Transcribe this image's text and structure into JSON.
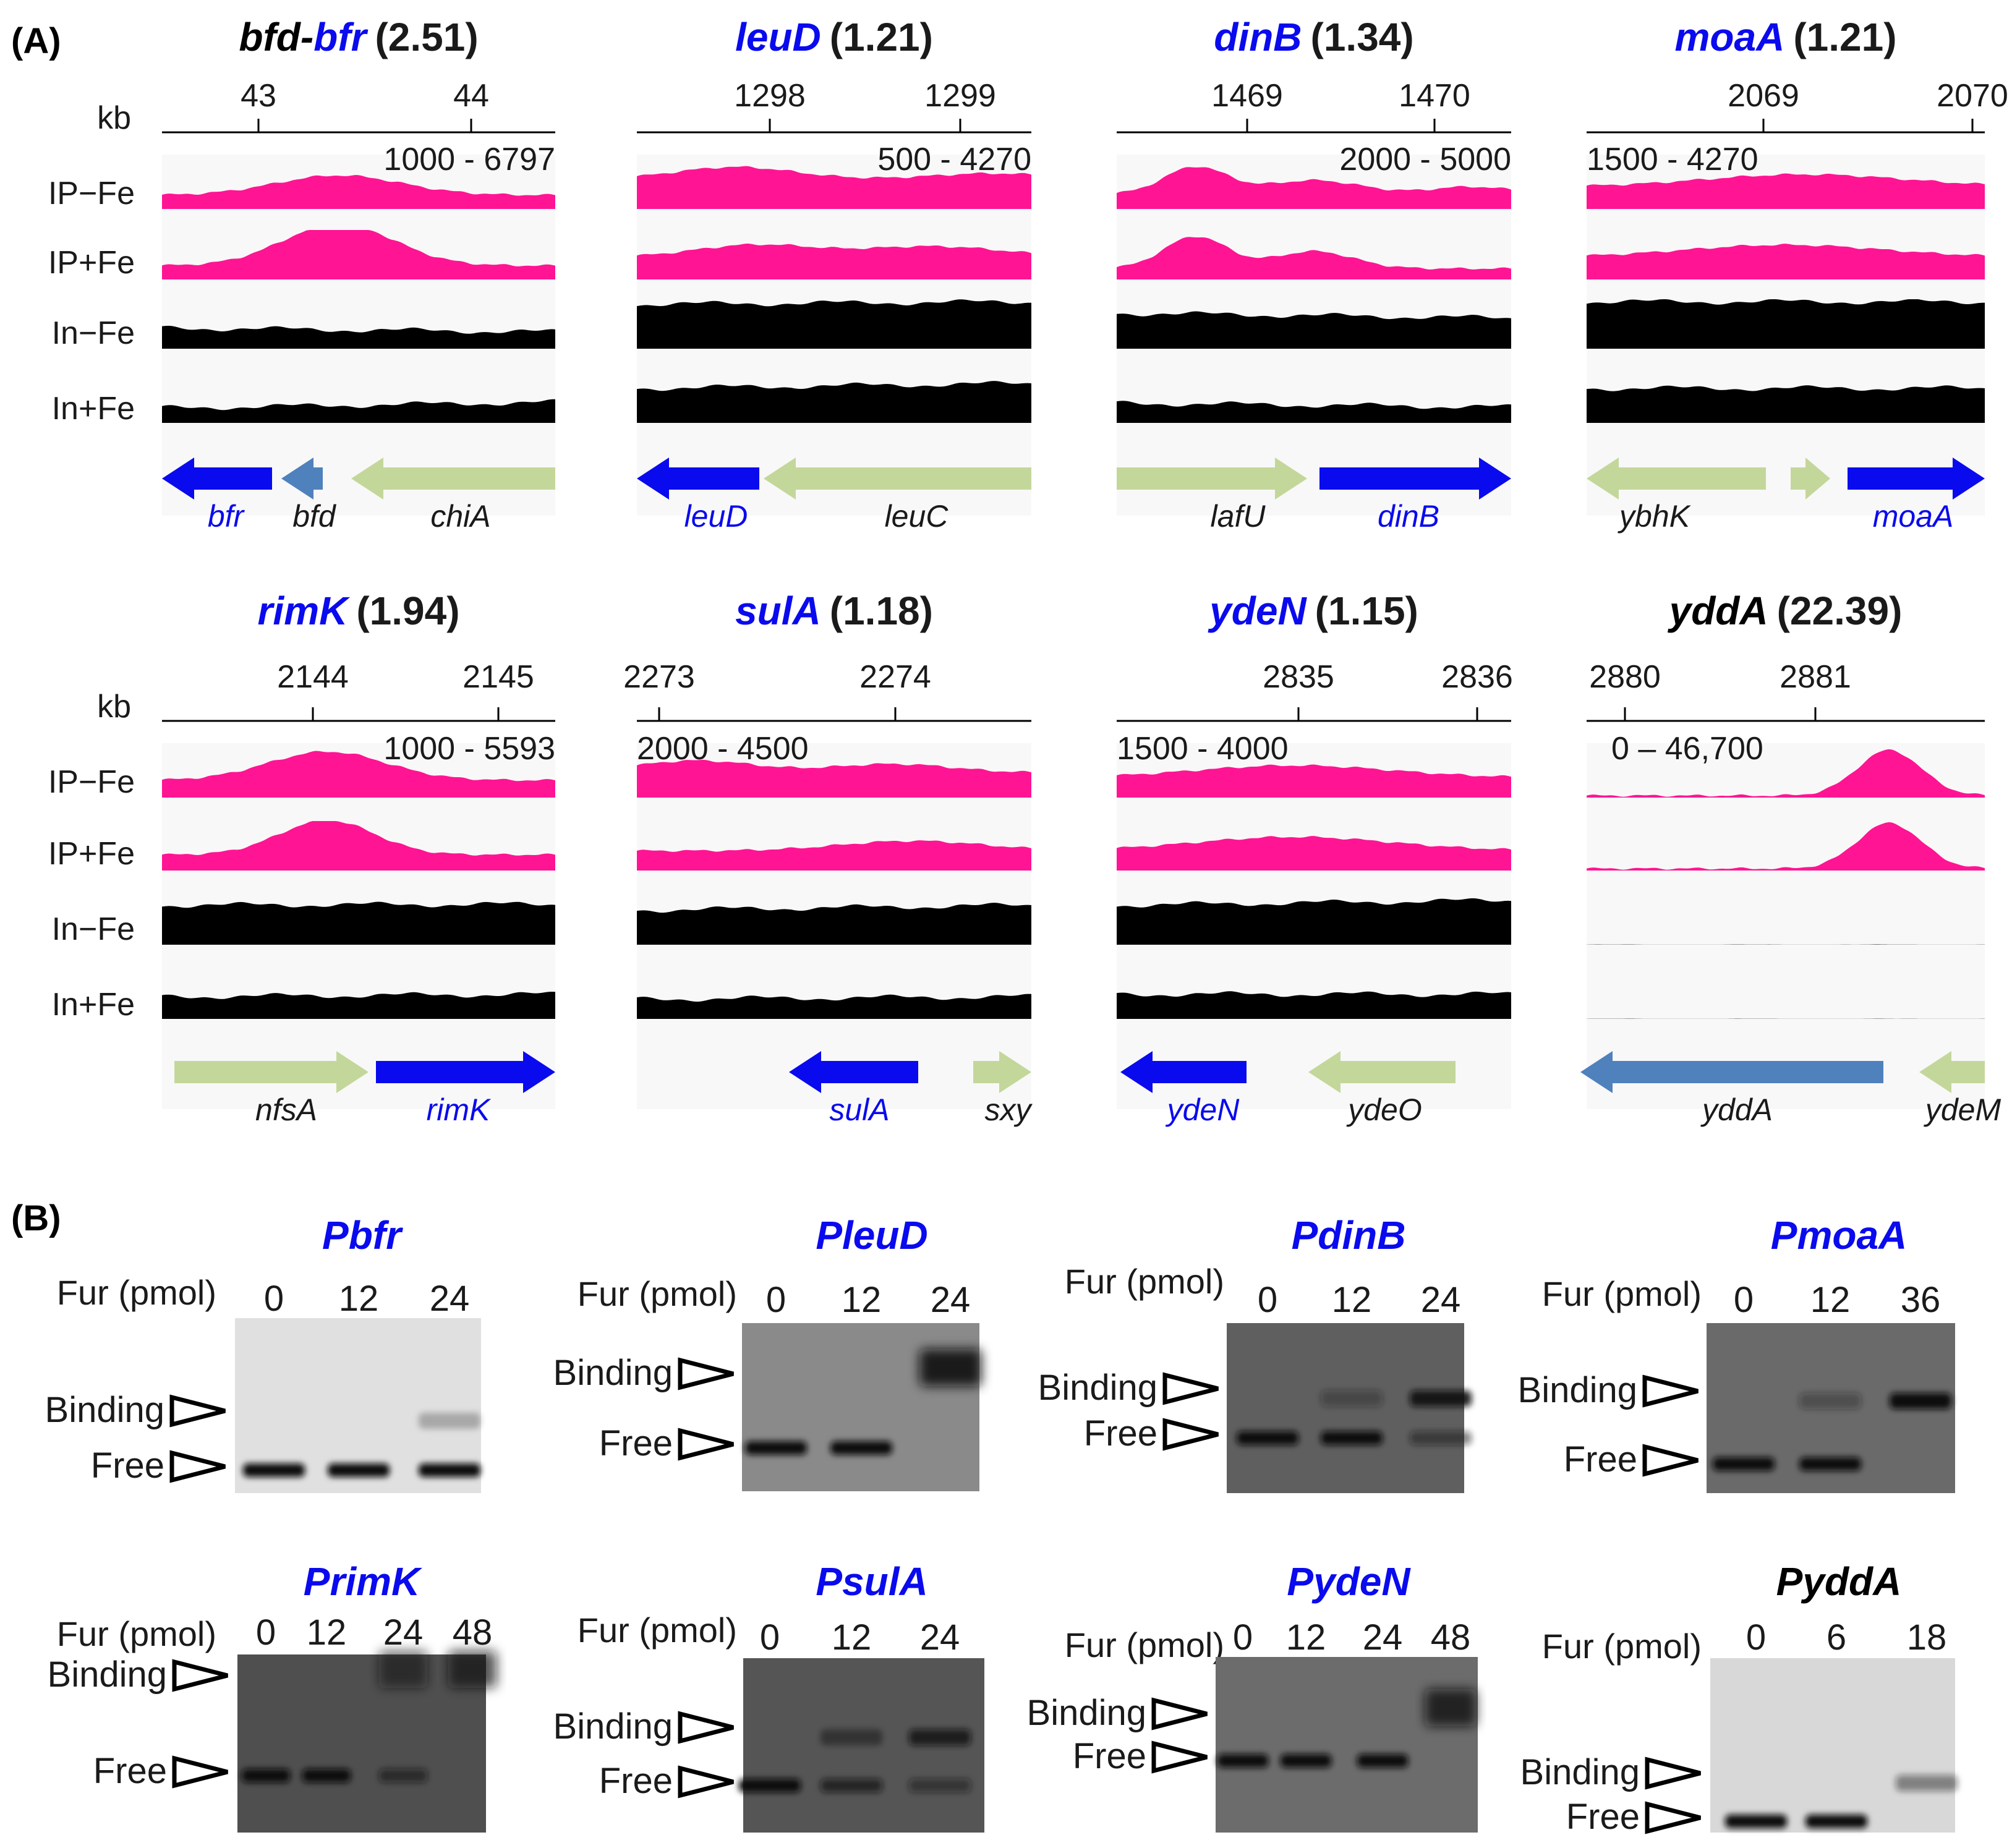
{
  "panel_labels": {
    "a": "(A)",
    "b": "(B)"
  },
  "colors": {
    "ip_track": "#ff1493",
    "input_track": "#000000",
    "gene_target": "#0a0aee",
    "gene_fur": "#4f81bd",
    "gene_other": "#c4d79b",
    "title_blue": "#0a0aee",
    "title_black": "#000000"
  },
  "chipseq": {
    "kb_label": "kb",
    "track_labels": [
      "IP−Fe",
      "IP+Fe",
      "In−Fe",
      "In+Fe"
    ],
    "loci": [
      {
        "name_a": "bfd",
        "name_sep": "-",
        "name_b": "bfr",
        "score": "(2.51)",
        "ticks": [
          "43",
          "44"
        ],
        "range": "1000 - 6797",
        "genes": [
          {
            "label": "bfr",
            "kind": "target"
          },
          {
            "label": "bfd",
            "kind": "fur"
          },
          {
            "label": "chiA",
            "kind": "other"
          }
        ]
      },
      {
        "name_a": "leuD",
        "score": "(1.21)",
        "ticks": [
          "1298",
          "1299"
        ],
        "range": "500 - 4270",
        "genes": [
          {
            "label": "leuD",
            "kind": "target"
          },
          {
            "label": "leuC",
            "kind": "other"
          }
        ]
      },
      {
        "name_a": "dinB",
        "score": "(1.34)",
        "ticks": [
          "1469",
          "1470"
        ],
        "range": "2000 - 5000",
        "genes": [
          {
            "label": "lafU",
            "kind": "other"
          },
          {
            "label": "dinB",
            "kind": "target"
          }
        ]
      },
      {
        "name_a": "moaA",
        "score": "(1.21)",
        "ticks": [
          "2069",
          "2070"
        ],
        "range": "1500 - 4270",
        "genes": [
          {
            "label": "ybhK",
            "kind": "other"
          },
          {
            "label": "moaA",
            "kind": "target"
          }
        ]
      },
      {
        "name_a": "rimK",
        "score": "(1.94)",
        "ticks": [
          "2144",
          "2145"
        ],
        "range": "1000 - 5593",
        "genes": [
          {
            "label": "nfsA",
            "kind": "other"
          },
          {
            "label": "rimK",
            "kind": "target"
          }
        ]
      },
      {
        "name_a": "sulA",
        "score": "(1.18)",
        "ticks": [
          "2273",
          "2274"
        ],
        "range": "2000 - 4500",
        "genes": [
          {
            "label": "sulA",
            "kind": "target"
          },
          {
            "label": "sxy",
            "kind": "other"
          }
        ]
      },
      {
        "name_a": "ydeN",
        "score": "(1.15)",
        "ticks": [
          "2835",
          "2836"
        ],
        "range": "1500 - 4000",
        "genes": [
          {
            "label": "ydeN",
            "kind": "target"
          },
          {
            "label": "ydeO",
            "kind": "other"
          }
        ]
      },
      {
        "name_a": "yddA",
        "score": "(22.39)",
        "ticks": [
          "2880",
          "2881"
        ],
        "range": "0 – 46,700",
        "genes": [
          {
            "label": "yddA",
            "kind": "fur"
          },
          {
            "label": "ydeM",
            "kind": "other"
          }
        ]
      }
    ]
  },
  "emsa": {
    "fur_label": "Fur (pmol)",
    "binding_label": "Binding",
    "free_label": "Free",
    "gels": [
      {
        "title": "Pbfr",
        "lanes": [
          "0",
          "12",
          "24"
        ]
      },
      {
        "title": "PleuD",
        "lanes": [
          "0",
          "12",
          "24"
        ]
      },
      {
        "title": "PdinB",
        "lanes": [
          "0",
          "12",
          "24"
        ]
      },
      {
        "title": "PmoaA",
        "lanes": [
          "0",
          "12",
          "36"
        ]
      },
      {
        "title": "PrimK",
        "lanes": [
          "0",
          "12",
          "24",
          "48"
        ]
      },
      {
        "title": "PsulA",
        "lanes": [
          "0",
          "12",
          "24"
        ]
      },
      {
        "title": "PydeN",
        "lanes": [
          "0",
          "12",
          "24",
          "48"
        ]
      },
      {
        "title": "PyddA",
        "lanes": [
          "0",
          "6",
          "18"
        ]
      }
    ]
  }
}
